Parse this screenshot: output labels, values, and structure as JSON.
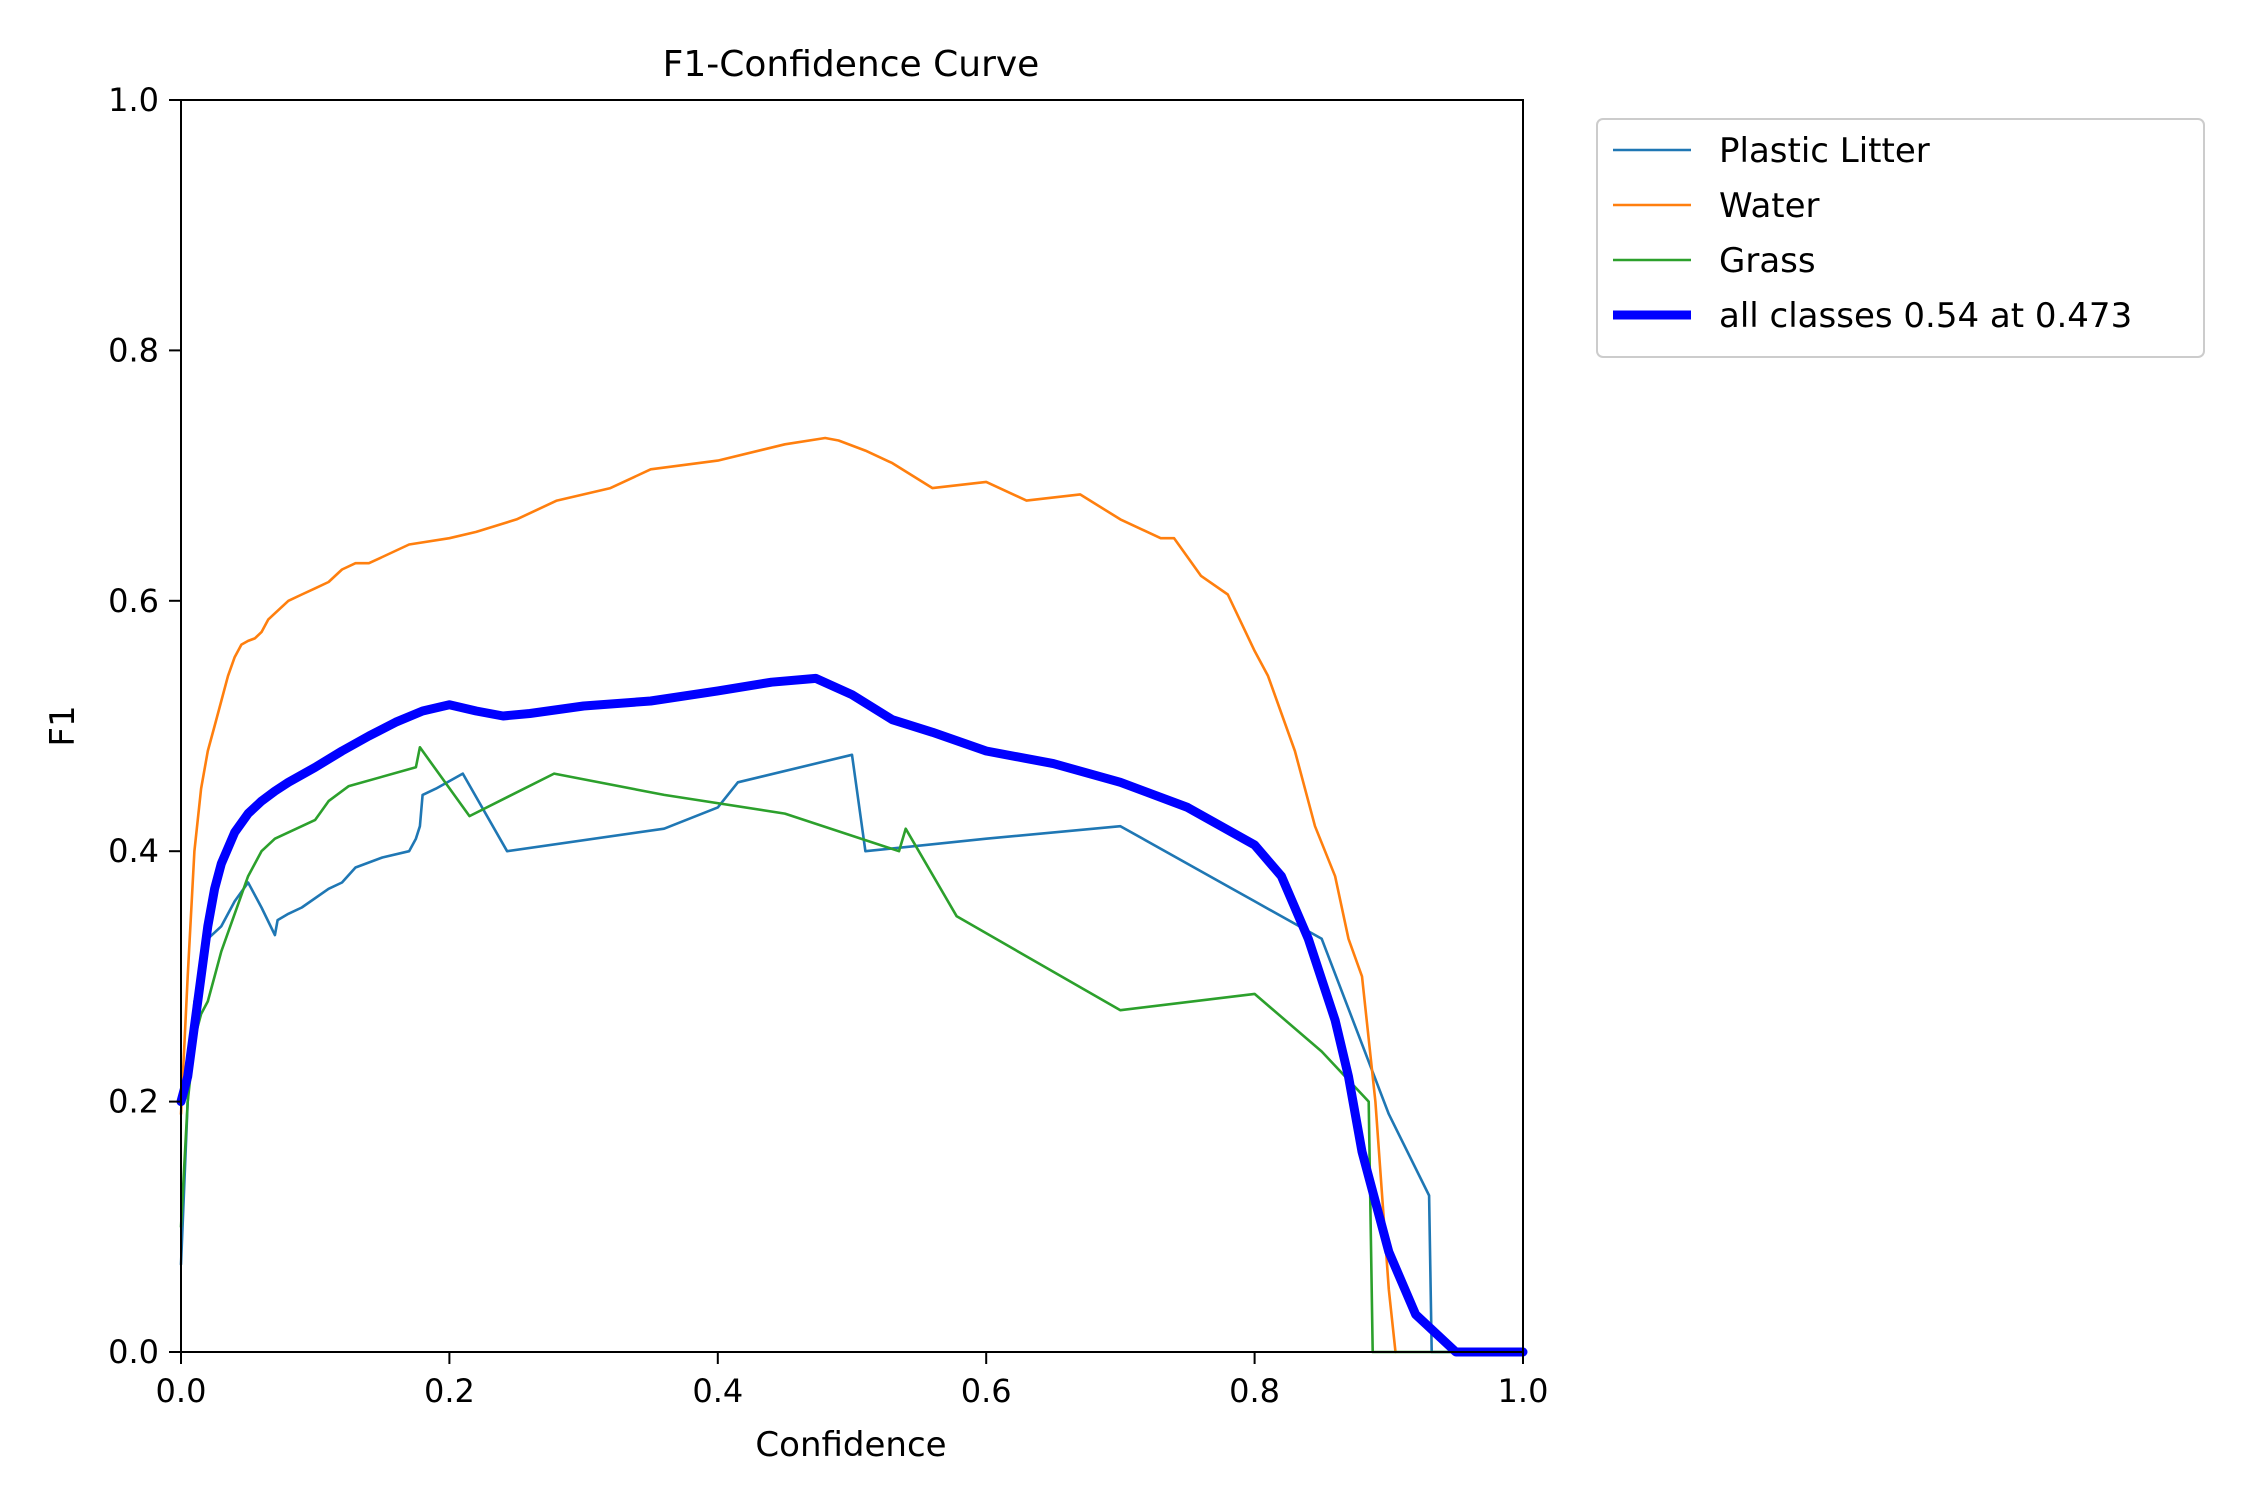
{
  "chart_data": {
    "type": "line",
    "title": "F1-Confidence Curve",
    "xlabel": "Confidence",
    "ylabel": "F1",
    "xlim": [
      0.0,
      1.0
    ],
    "ylim": [
      0.0,
      1.0
    ],
    "xticks": [
      "0.0",
      "0.2",
      "0.4",
      "0.6",
      "0.8",
      "1.0"
    ],
    "yticks": [
      "0.0",
      "0.2",
      "0.4",
      "0.6",
      "0.8",
      "1.0"
    ],
    "grid": false,
    "legend_position": "outside-top-right",
    "series": [
      {
        "name": "Plastic Litter",
        "color": "#1f77b4",
        "width": "thin",
        "x": [
          0.0,
          0.005,
          0.01,
          0.015,
          0.02,
          0.03,
          0.04,
          0.05,
          0.06,
          0.07,
          0.072,
          0.08,
          0.09,
          0.11,
          0.12,
          0.13,
          0.15,
          0.17,
          0.175,
          0.178,
          0.18,
          0.19,
          0.21,
          0.243,
          0.36,
          0.4,
          0.415,
          0.5,
          0.51,
          0.6,
          0.7,
          0.8,
          0.85,
          0.9,
          0.93,
          0.932,
          1.0
        ],
        "y": [
          0.07,
          0.2,
          0.28,
          0.3,
          0.33,
          0.34,
          0.36,
          0.375,
          0.355,
          0.333,
          0.345,
          0.35,
          0.355,
          0.37,
          0.375,
          0.387,
          0.395,
          0.4,
          0.41,
          0.42,
          0.445,
          0.45,
          0.462,
          0.4,
          0.418,
          0.435,
          0.455,
          0.477,
          0.4,
          0.41,
          0.42,
          0.36,
          0.33,
          0.19,
          0.125,
          0.0,
          0.0
        ]
      },
      {
        "name": "Water",
        "color": "#ff7f0e",
        "width": "thin",
        "x": [
          0.0,
          0.005,
          0.01,
          0.015,
          0.02,
          0.025,
          0.03,
          0.035,
          0.04,
          0.045,
          0.05,
          0.055,
          0.06,
          0.065,
          0.07,
          0.08,
          0.09,
          0.1,
          0.11,
          0.12,
          0.13,
          0.14,
          0.15,
          0.17,
          0.2,
          0.22,
          0.25,
          0.28,
          0.32,
          0.35,
          0.4,
          0.45,
          0.48,
          0.49,
          0.51,
          0.53,
          0.56,
          0.6,
          0.63,
          0.67,
          0.7,
          0.73,
          0.74,
          0.76,
          0.78,
          0.8,
          0.81,
          0.83,
          0.845,
          0.86,
          0.87,
          0.88,
          0.89,
          0.9,
          0.905
        ],
        "y": [
          0.19,
          0.3,
          0.4,
          0.45,
          0.48,
          0.5,
          0.52,
          0.54,
          0.555,
          0.565,
          0.568,
          0.57,
          0.575,
          0.585,
          0.59,
          0.6,
          0.605,
          0.61,
          0.615,
          0.625,
          0.63,
          0.63,
          0.635,
          0.645,
          0.65,
          0.655,
          0.665,
          0.68,
          0.69,
          0.705,
          0.712,
          0.725,
          0.73,
          0.728,
          0.72,
          0.71,
          0.69,
          0.695,
          0.68,
          0.685,
          0.665,
          0.65,
          0.65,
          0.62,
          0.605,
          0.56,
          0.54,
          0.48,
          0.42,
          0.38,
          0.33,
          0.3,
          0.2,
          0.05,
          0.0
        ]
      },
      {
        "name": "Grass",
        "color": "#2ca02c",
        "width": "thin",
        "x": [
          0.0,
          0.005,
          0.01,
          0.015,
          0.02,
          0.025,
          0.03,
          0.04,
          0.05,
          0.06,
          0.07,
          0.1,
          0.11,
          0.125,
          0.175,
          0.178,
          0.215,
          0.278,
          0.36,
          0.45,
          0.535,
          0.54,
          0.578,
          0.7,
          0.8,
          0.85,
          0.885,
          0.888,
          1.0
        ],
        "y": [
          0.1,
          0.2,
          0.25,
          0.27,
          0.28,
          0.3,
          0.32,
          0.35,
          0.38,
          0.4,
          0.41,
          0.425,
          0.44,
          0.452,
          0.467,
          0.483,
          0.428,
          0.462,
          0.445,
          0.43,
          0.4,
          0.418,
          0.348,
          0.273,
          0.286,
          0.24,
          0.2,
          0.0,
          0.0
        ]
      },
      {
        "name": "all classes 0.54 at 0.473",
        "color": "#0000ff",
        "width": "thick",
        "x": [
          0.0,
          0.005,
          0.01,
          0.015,
          0.02,
          0.025,
          0.03,
          0.04,
          0.05,
          0.06,
          0.07,
          0.08,
          0.1,
          0.12,
          0.14,
          0.16,
          0.18,
          0.2,
          0.22,
          0.24,
          0.26,
          0.3,
          0.35,
          0.4,
          0.44,
          0.473,
          0.5,
          0.53,
          0.56,
          0.6,
          0.65,
          0.7,
          0.75,
          0.8,
          0.82,
          0.84,
          0.86,
          0.87,
          0.88,
          0.9,
          0.92,
          0.95,
          1.0
        ],
        "y": [
          0.2,
          0.22,
          0.26,
          0.3,
          0.34,
          0.37,
          0.39,
          0.415,
          0.43,
          0.44,
          0.448,
          0.455,
          0.467,
          0.48,
          0.492,
          0.503,
          0.512,
          0.517,
          0.512,
          0.508,
          0.51,
          0.516,
          0.52,
          0.528,
          0.535,
          0.538,
          0.525,
          0.505,
          0.495,
          0.48,
          0.47,
          0.455,
          0.435,
          0.405,
          0.38,
          0.33,
          0.265,
          0.22,
          0.16,
          0.08,
          0.03,
          0.0,
          0.0
        ]
      }
    ]
  }
}
